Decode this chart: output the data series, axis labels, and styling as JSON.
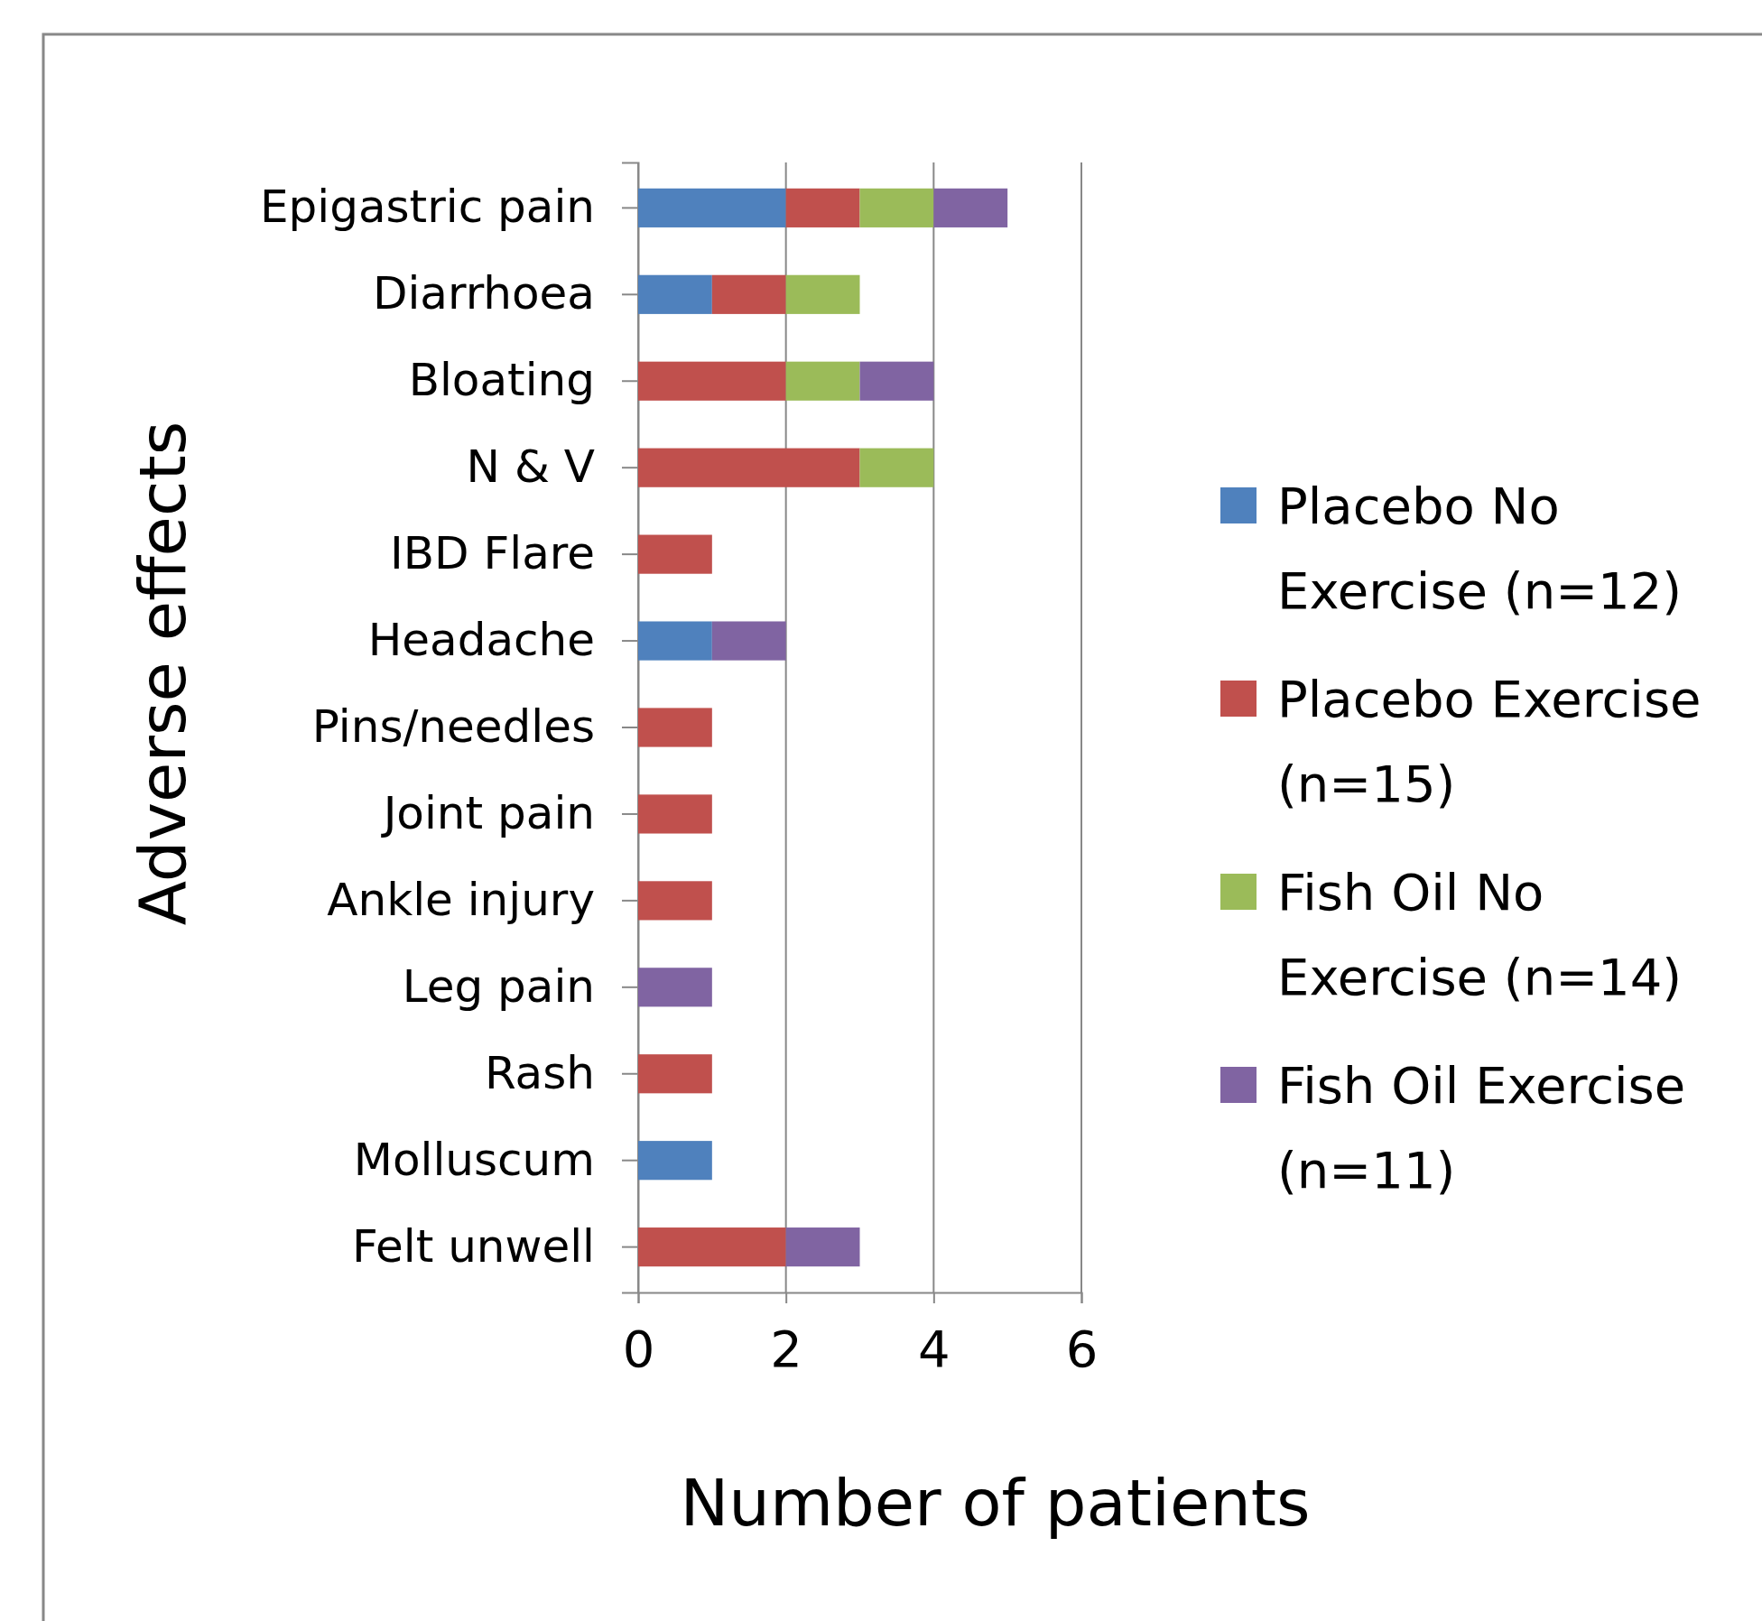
{
  "chart_data": {
    "type": "bar",
    "orientation": "horizontal",
    "stacked": true,
    "xlabel": "Number of patients",
    "ylabel": "Adverse effects",
    "categories": [
      "Epigastric pain",
      "Diarrhoea",
      "Bloating",
      "N & V",
      "IBD Flare",
      "Headache",
      "Pins/needles",
      "Joint pain",
      "Ankle injury",
      "Leg pain",
      "Rash",
      "Molluscum",
      "Felt unwell"
    ],
    "series": [
      {
        "name": "Placebo No Exercise (n=12)",
        "color": "#4f81bd",
        "values": [
          2,
          1,
          0,
          0,
          0,
          1,
          0,
          0,
          0,
          0,
          0,
          1,
          0
        ]
      },
      {
        "name": "Placebo Exercise (n=15)",
        "color": "#c0504d",
        "values": [
          1,
          1,
          2,
          3,
          1,
          0,
          1,
          1,
          1,
          0,
          1,
          0,
          2
        ]
      },
      {
        "name": "Fish Oil No Exercise (n=14)",
        "color": "#9bbb59",
        "values": [
          1,
          1,
          1,
          1,
          0,
          0,
          0,
          0,
          0,
          0,
          0,
          0,
          0
        ]
      },
      {
        "name": "Fish Oil Exercise (n=11)",
        "color": "#8064a2",
        "values": [
          1,
          0,
          1,
          0,
          0,
          1,
          0,
          0,
          0,
          1,
          0,
          0,
          1
        ]
      }
    ],
    "xlim": [
      0,
      6
    ],
    "xticks": [
      0,
      2,
      4,
      6
    ],
    "grid": "x",
    "legend": "right"
  }
}
